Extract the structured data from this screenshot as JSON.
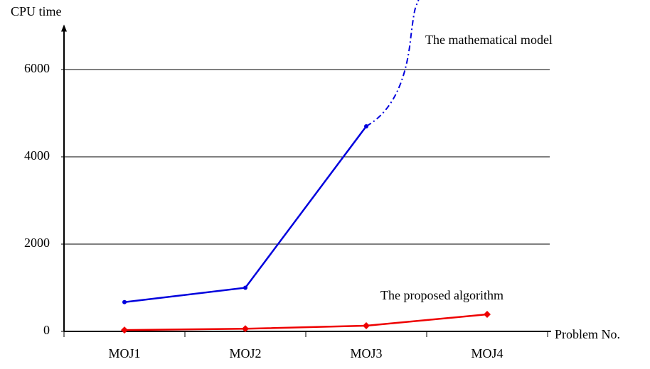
{
  "chart_data": {
    "type": "line",
    "y_label": "CPU time",
    "x_label": "Problem No.",
    "categories": [
      "MOJ1",
      "MOJ2",
      "MOJ3",
      "MOJ4"
    ],
    "series": [
      {
        "name": "The mathematical model",
        "color": "#0000dd",
        "marker": "circle",
        "values": [
          670,
          1000,
          4700,
          null
        ]
      },
      {
        "name": "The proposed algorithm",
        "color": "#ee0000",
        "marker": "diamond",
        "values": [
          30,
          60,
          130,
          390
        ]
      }
    ],
    "ylim": [
      0,
      7000
    ],
    "yticks": [
      0,
      2000,
      4000,
      6000
    ],
    "grid": true
  }
}
